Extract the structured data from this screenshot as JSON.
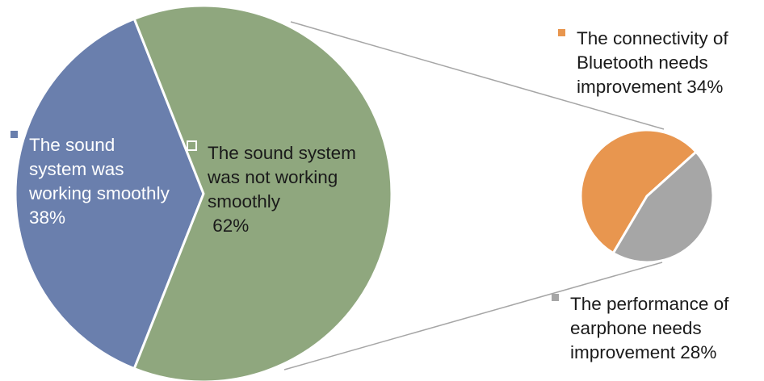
{
  "chart_data": [
    {
      "type": "pie",
      "slices": [
        {
          "label": "The sound system was working smoothly",
          "value": 38,
          "value_label": "38%",
          "color": "#6a7fad"
        },
        {
          "label": "The sound system was not working smoothly",
          "value": 62,
          "value_label": "62%",
          "color": "#8fa77e"
        }
      ]
    },
    {
      "type": "pie",
      "slices": [
        {
          "label": "The connectivity of Bluetooth needs improvement",
          "value": 34,
          "value_label": "34%",
          "color": "#e8964f"
        },
        {
          "label": "The performance of earphone needs improvement",
          "value": 28,
          "value_label": "28%",
          "color": "#a6a6a6"
        }
      ]
    }
  ],
  "labels": {
    "working": "The sound\nsystem was\nworking smoothly\n38%",
    "not_working": "The sound system\nwas not working\nsmoothly\n 62%",
    "bluetooth": "The connectivity of\nBluetooth needs\nimprovement 34%",
    "earphone": "The performance of\nearphone needs\nimprovement 28%"
  },
  "colors": {
    "connector": "#a6a6a6",
    "slice_border": "#ffffff"
  }
}
